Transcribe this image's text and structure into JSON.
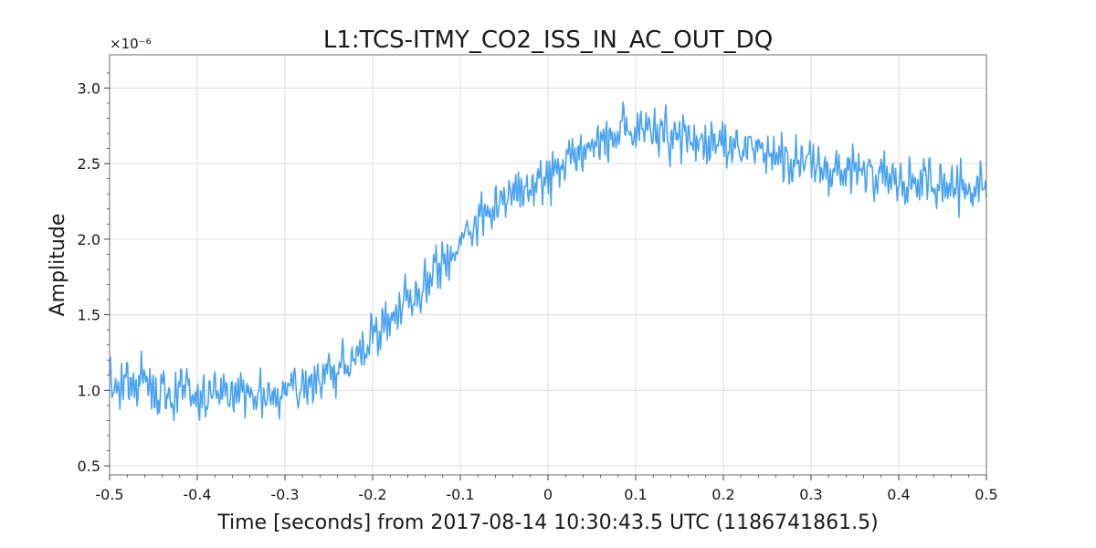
{
  "chart_data": {
    "type": "line",
    "title": "L1:TCS-ITMY_CO2_ISS_IN_AC_OUT_DQ",
    "xlabel": "Time [seconds] from 2017-08-14 10:30:43.5 UTC (1186741861.5)",
    "ylabel": "Amplitude",
    "y_offset_label": "×10⁻⁶",
    "xlim": [
      -0.5,
      0.5
    ],
    "ylim": [
      0.44,
      3.22
    ],
    "x_ticks": [
      -0.5,
      -0.4,
      -0.3,
      -0.2,
      -0.1,
      0,
      0.1,
      0.2,
      0.3,
      0.4,
      0.5
    ],
    "x_tick_labels": [
      "-0.5",
      "-0.4",
      "-0.3",
      "-0.2",
      "-0.1",
      "0",
      "0.1",
      "0.2",
      "0.3",
      "0.4",
      "0.5"
    ],
    "y_ticks": [
      0.5,
      1.0,
      1.5,
      2.0,
      2.5,
      3.0
    ],
    "y_tick_labels": [
      "0.5",
      "1.0",
      "1.5",
      "2.0",
      "2.5",
      "3.0"
    ],
    "grid": true,
    "color": "#4aa3f0",
    "series": [
      {
        "name": "",
        "x": [
          -0.5,
          -0.45,
          -0.4,
          -0.35,
          -0.3,
          -0.28,
          -0.26,
          -0.24,
          -0.22,
          -0.2,
          -0.18,
          -0.16,
          -0.14,
          -0.12,
          -0.1,
          -0.08,
          -0.06,
          -0.04,
          -0.02,
          0,
          0.02,
          0.05,
          0.08,
          0.1,
          0.15,
          0.2,
          0.25,
          0.3,
          0.35,
          0.4,
          0.45,
          0.5
        ],
        "values": [
          1.05,
          1.02,
          0.98,
          0.96,
          0.98,
          1.0,
          1.05,
          1.13,
          1.23,
          1.35,
          1.48,
          1.6,
          1.72,
          1.84,
          1.97,
          2.1,
          2.22,
          2.3,
          2.34,
          2.4,
          2.52,
          2.62,
          2.68,
          2.7,
          2.68,
          2.62,
          2.56,
          2.48,
          2.43,
          2.38,
          2.37,
          2.36
        ]
      }
    ]
  }
}
